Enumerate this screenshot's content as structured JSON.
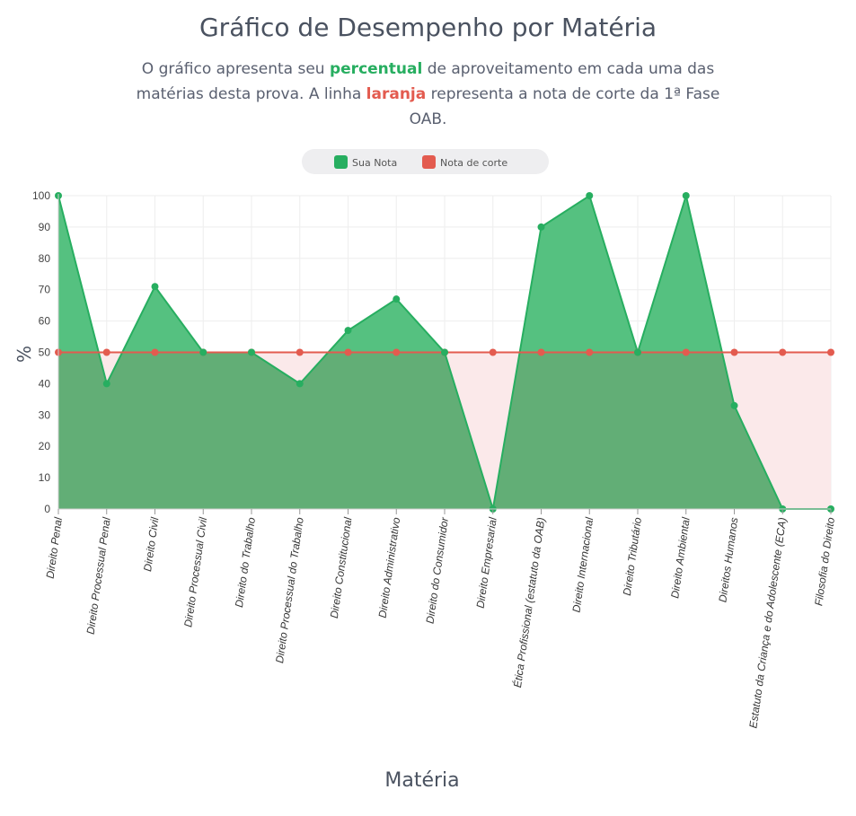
{
  "header": {
    "title": "Gráfico de Desempenho por Matéria",
    "subtitle_1": "O gráfico apresenta seu ",
    "subtitle_hl1": "percentual",
    "subtitle_2": " de aproveitamento em cada uma das matérias desta prova. A linha ",
    "subtitle_hl2": "laranja",
    "subtitle_3": " representa a nota de corte da 1ª Fase OAB."
  },
  "colors": {
    "primary": "#27ae60",
    "primary_fill": "#4fbf7c",
    "overlap_fill": "#62ae76",
    "cut": "#e35b4f",
    "cut_fill": "#fbe9ea",
    "grid": "#eeeeee",
    "text": "#4a5260"
  },
  "chart_data": {
    "type": "area",
    "title": "Gráfico de Desempenho por Matéria",
    "xlabel": "Matéria",
    "ylabel": "%",
    "ylim": [
      0,
      100
    ],
    "yticks": [
      0,
      10,
      20,
      30,
      40,
      50,
      60,
      70,
      80,
      90,
      100
    ],
    "grid": true,
    "legend_position": "top-center",
    "categories": [
      "Direito Penal",
      "Direito Processual Penal",
      "Direito Civil",
      "Direito Processual Civil",
      "Direito do Trabalho",
      "Direito Processual do Trabalho",
      "Direito Constitucional",
      "Direito Administrativo",
      "Direito do Consumidor",
      "Direito Empresarial",
      "Ética Profissional (estatuto da OAB)",
      "Direito Internacional",
      "Direito Tributário",
      "Direito Ambiental",
      "Direitos Humanos",
      "Estatuto da Criança e do Adolescente (ECA)",
      "Filosofia do Direito"
    ],
    "series": [
      {
        "name": "Sua Nota",
        "values": [
          100,
          40,
          71,
          50,
          50,
          40,
          57,
          67,
          50,
          0,
          90,
          100,
          50,
          100,
          33,
          0,
          0
        ]
      },
      {
        "name": "Nota de corte",
        "values": [
          50,
          50,
          50,
          50,
          50,
          50,
          50,
          50,
          50,
          50,
          50,
          50,
          50,
          50,
          50,
          50,
          50
        ]
      }
    ]
  }
}
